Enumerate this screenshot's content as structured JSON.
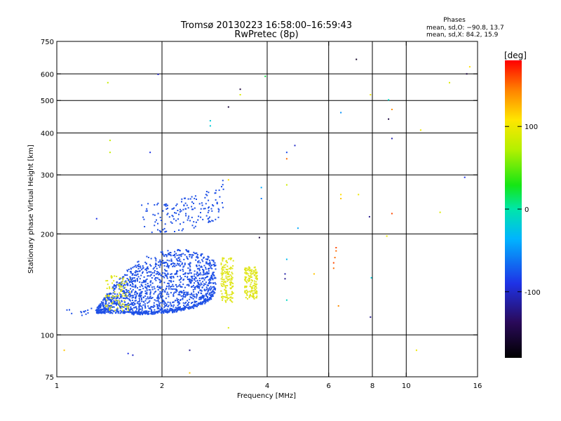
{
  "chart_data": {
    "type": "scatter",
    "title": "Tromsø 20130223 16:58:00–16:59:43",
    "subtitle": "RwPretec (8p)",
    "xlabel": "Frequency [MHz]",
    "ylabel": "Stationary phase Virtual Height [km]",
    "x_scale": "log",
    "y_scale": "log",
    "xlim": [
      1,
      16
    ],
    "ylim": [
      75,
      750
    ],
    "x_ticks": [
      1,
      2,
      4,
      6,
      8,
      10,
      16
    ],
    "y_ticks": [
      75,
      100,
      200,
      300,
      400,
      500,
      600,
      750
    ],
    "grid": true,
    "stats": {
      "heading": "Phases",
      "line_o": "mean, sd,O: −90.8, 13.7",
      "line_x": "mean, sd,X:  84.2, 15.9"
    },
    "colorbar": {
      "label": "[deg]",
      "range": [
        -180,
        180
      ],
      "ticks": [
        100,
        0,
        -100
      ]
    },
    "o_trace": {
      "phase_deg": -90,
      "color": "#1e50e6",
      "lower_boundary": [
        [
          1.62,
          116
        ],
        [
          1.8,
          116
        ],
        [
          2.0,
          117
        ],
        [
          2.2,
          118
        ],
        [
          2.45,
          121
        ],
        [
          2.65,
          125
        ],
        [
          2.8,
          130
        ]
      ],
      "upper_boundary": [
        [
          1.3,
          120
        ],
        [
          1.45,
          140
        ],
        [
          1.6,
          158
        ],
        [
          1.8,
          172
        ],
        [
          2.0,
          178
        ],
        [
          2.3,
          180
        ],
        [
          2.6,
          176
        ],
        [
          2.8,
          168
        ]
      ],
      "spread_upper": [
        [
          2.05,
          225
        ],
        [
          2.4,
          232
        ],
        [
          2.9,
          248
        ],
        [
          3.0,
          268
        ]
      ]
    },
    "x_trace": {
      "phase_deg": 84,
      "color": "#e0e61e",
      "regions": [
        {
          "x": [
            1.38,
            1.62
          ],
          "y": [
            118,
            150
          ]
        },
        {
          "x": [
            2.95,
            3.2
          ],
          "y": [
            125,
            170
          ]
        },
        {
          "x": [
            3.45,
            3.75
          ],
          "y": [
            128,
            160
          ]
        }
      ]
    },
    "scattered_points": [
      {
        "x": 1.4,
        "y": 565,
        "phase_deg": 80
      },
      {
        "x": 1.42,
        "y": 380,
        "phase_deg": 80
      },
      {
        "x": 1.42,
        "y": 350,
        "phase_deg": 80
      },
      {
        "x": 1.3,
        "y": 222,
        "phase_deg": -90
      },
      {
        "x": 1.05,
        "y": 90,
        "phase_deg": 120
      },
      {
        "x": 1.6,
        "y": 88,
        "phase_deg": -90
      },
      {
        "x": 1.65,
        "y": 87,
        "phase_deg": -100
      },
      {
        "x": 1.85,
        "y": 350,
        "phase_deg": -90
      },
      {
        "x": 1.95,
        "y": 598,
        "phase_deg": -100
      },
      {
        "x": 2.75,
        "y": 435,
        "phase_deg": -20
      },
      {
        "x": 2.75,
        "y": 420,
        "phase_deg": -20
      },
      {
        "x": 3.1,
        "y": 478,
        "phase_deg": -150
      },
      {
        "x": 3.35,
        "y": 540,
        "phase_deg": -150
      },
      {
        "x": 3.35,
        "y": 520,
        "phase_deg": 90
      },
      {
        "x": 3.1,
        "y": 290,
        "phase_deg": 110
      },
      {
        "x": 3.95,
        "y": 590,
        "phase_deg": 20
      },
      {
        "x": 3.85,
        "y": 275,
        "phase_deg": -40
      },
      {
        "x": 3.85,
        "y": 255,
        "phase_deg": -60
      },
      {
        "x": 3.8,
        "y": 195,
        "phase_deg": -150
      },
      {
        "x": 4.55,
        "y": 350,
        "phase_deg": -80
      },
      {
        "x": 4.55,
        "y": 335,
        "phase_deg": 150
      },
      {
        "x": 4.55,
        "y": 280,
        "phase_deg": 85
      },
      {
        "x": 4.8,
        "y": 367,
        "phase_deg": -100
      },
      {
        "x": 4.9,
        "y": 208,
        "phase_deg": -40
      },
      {
        "x": 4.55,
        "y": 168,
        "phase_deg": -30
      },
      {
        "x": 4.5,
        "y": 152,
        "phase_deg": -110
      },
      {
        "x": 4.5,
        "y": 147,
        "phase_deg": -120
      },
      {
        "x": 4.55,
        "y": 127,
        "phase_deg": -10
      },
      {
        "x": 5.45,
        "y": 152,
        "phase_deg": 120
      },
      {
        "x": 6.5,
        "y": 460,
        "phase_deg": -50
      },
      {
        "x": 7.2,
        "y": 663,
        "phase_deg": -160
      },
      {
        "x": 7.3,
        "y": 262,
        "phase_deg": 100
      },
      {
        "x": 6.5,
        "y": 262,
        "phase_deg": 110
      },
      {
        "x": 6.5,
        "y": 255,
        "phase_deg": 120
      },
      {
        "x": 6.3,
        "y": 182,
        "phase_deg": 160
      },
      {
        "x": 6.3,
        "y": 178,
        "phase_deg": 150
      },
      {
        "x": 6.25,
        "y": 170,
        "phase_deg": 150
      },
      {
        "x": 6.2,
        "y": 164,
        "phase_deg": 160
      },
      {
        "x": 6.2,
        "y": 158,
        "phase_deg": 150
      },
      {
        "x": 6.4,
        "y": 122,
        "phase_deg": 140
      },
      {
        "x": 7.9,
        "y": 520,
        "phase_deg": 100
      },
      {
        "x": 7.85,
        "y": 225,
        "phase_deg": -120
      },
      {
        "x": 7.95,
        "y": 148,
        "phase_deg": -20
      },
      {
        "x": 7.9,
        "y": 113,
        "phase_deg": -120
      },
      {
        "x": 8.9,
        "y": 502,
        "phase_deg": -10
      },
      {
        "x": 9.1,
        "y": 470,
        "phase_deg": 140
      },
      {
        "x": 8.9,
        "y": 440,
        "phase_deg": -150
      },
      {
        "x": 9.1,
        "y": 385,
        "phase_deg": -110
      },
      {
        "x": 9.1,
        "y": 230,
        "phase_deg": 160
      },
      {
        "x": 8.8,
        "y": 197,
        "phase_deg": 100
      },
      {
        "x": 11.0,
        "y": 408,
        "phase_deg": 100
      },
      {
        "x": 12.5,
        "y": 232,
        "phase_deg": 90
      },
      {
        "x": 13.3,
        "y": 565,
        "phase_deg": 90
      },
      {
        "x": 14.9,
        "y": 600,
        "phase_deg": -150
      },
      {
        "x": 15.2,
        "y": 630,
        "phase_deg": 110
      },
      {
        "x": 14.7,
        "y": 295,
        "phase_deg": -90
      },
      {
        "x": 10.7,
        "y": 90,
        "phase_deg": 100
      },
      {
        "x": 2.4,
        "y": 90,
        "phase_deg": -120
      },
      {
        "x": 2.4,
        "y": 77,
        "phase_deg": 120
      },
      {
        "x": 3.1,
        "y": 105,
        "phase_deg": 90
      }
    ]
  }
}
